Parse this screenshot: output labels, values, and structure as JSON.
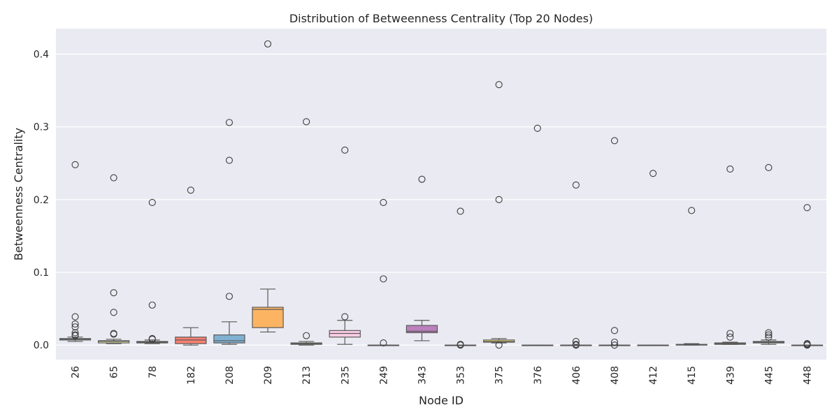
{
  "chart_data": {
    "type": "box",
    "title": "Distribution of Betweenness Centrality (Top 20 Nodes)",
    "xlabel": "Node ID",
    "ylabel": "Betweenness Centrality",
    "ylim": [
      -0.02,
      0.435
    ],
    "yticks": [
      0.0,
      0.1,
      0.2,
      0.3,
      0.4
    ],
    "ytick_labels": [
      "0.0",
      "0.1",
      "0.2",
      "0.3",
      "0.4"
    ],
    "grid": true,
    "background": "#eaeaf2",
    "categories": [
      "26",
      "65",
      "78",
      "182",
      "208",
      "209",
      "213",
      "235",
      "249",
      "343",
      "353",
      "375",
      "376",
      "406",
      "408",
      "412",
      "415",
      "439",
      "445",
      "448"
    ],
    "boxes": [
      {
        "node": "26",
        "color": "#8dd3c7",
        "whisker_low": 0.005,
        "q1": 0.007,
        "median": 0.008,
        "q3": 0.009,
        "whisker_high": 0.011,
        "outliers": [
          0.248,
          0.039,
          0.029,
          0.025,
          0.017,
          0.014,
          0.013
        ]
      },
      {
        "node": "65",
        "color": "#ffffb3",
        "whisker_low": 0.002,
        "q1": 0.003,
        "median": 0.005,
        "q3": 0.006,
        "whisker_high": 0.008,
        "outliers": [
          0.23,
          0.072,
          0.045,
          0.016,
          0.015
        ]
      },
      {
        "node": "78",
        "color": "#bebada",
        "whisker_low": 0.002,
        "q1": 0.003,
        "median": 0.004,
        "q3": 0.005,
        "whisker_high": 0.007,
        "outliers": [
          0.196,
          0.055,
          0.009,
          0.008
        ]
      },
      {
        "node": "182",
        "color": "#fb8072",
        "whisker_low": 0.0,
        "q1": 0.002,
        "median": 0.007,
        "q3": 0.011,
        "whisker_high": 0.024,
        "outliers": [
          0.213
        ]
      },
      {
        "node": "208",
        "color": "#80b1d3",
        "whisker_low": 0.001,
        "q1": 0.003,
        "median": 0.006,
        "q3": 0.014,
        "whisker_high": 0.032,
        "outliers": [
          0.306,
          0.254,
          0.067
        ]
      },
      {
        "node": "209",
        "color": "#fdb462",
        "whisker_low": 0.018,
        "q1": 0.024,
        "median": 0.049,
        "q3": 0.052,
        "whisker_high": 0.077,
        "outliers": [
          0.414
        ]
      },
      {
        "node": "213",
        "color": "#b3de69",
        "whisker_low": 0.0,
        "q1": 0.001,
        "median": 0.002,
        "q3": 0.003,
        "whisker_high": 0.005,
        "outliers": [
          0.307,
          0.013
        ]
      },
      {
        "node": "235",
        "color": "#fccde5",
        "whisker_low": 0.001,
        "q1": 0.011,
        "median": 0.016,
        "q3": 0.02,
        "whisker_high": 0.034,
        "outliers": [
          0.268,
          0.039
        ]
      },
      {
        "node": "249",
        "color": "#d9d9d9",
        "whisker_low": 0.0,
        "q1": 0.0,
        "median": 0.0,
        "q3": 0.0,
        "whisker_high": 0.0,
        "outliers": [
          0.196,
          0.091,
          0.003
        ]
      },
      {
        "node": "343",
        "color": "#bc80bd",
        "whisker_low": 0.006,
        "q1": 0.017,
        "median": 0.019,
        "q3": 0.027,
        "whisker_high": 0.034,
        "outliers": [
          0.228
        ]
      },
      {
        "node": "353",
        "color": "#ccebc5",
        "whisker_low": 0.0,
        "q1": 0.0,
        "median": 0.0,
        "q3": 0.0,
        "whisker_high": 0.0,
        "outliers": [
          0.184,
          0.001,
          0.0
        ]
      },
      {
        "node": "375",
        "color": "#ffed6f",
        "whisker_low": 0.003,
        "q1": 0.004,
        "median": 0.005,
        "q3": 0.007,
        "whisker_high": 0.009,
        "outliers": [
          0.358,
          0.2,
          0.0
        ]
      },
      {
        "node": "376",
        "color": "#8dd3c7",
        "whisker_low": 0.0,
        "q1": 0.0,
        "median": 0.0,
        "q3": 0.0,
        "whisker_high": 0.0,
        "outliers": [
          0.298
        ]
      },
      {
        "node": "406",
        "color": "#ffffb3",
        "whisker_low": 0.0,
        "q1": 0.0,
        "median": 0.0,
        "q3": 0.0,
        "whisker_high": 0.0,
        "outliers": [
          0.22,
          0.005,
          0.001,
          0.0
        ]
      },
      {
        "node": "408",
        "color": "#bebada",
        "whisker_low": 0.0,
        "q1": 0.0,
        "median": 0.0,
        "q3": 0.0,
        "whisker_high": 0.0,
        "outliers": [
          0.281,
          0.02,
          0.004,
          0.0
        ]
      },
      {
        "node": "412",
        "color": "#fb8072",
        "whisker_low": 0.0,
        "q1": 0.0,
        "median": 0.0,
        "q3": 0.0,
        "whisker_high": 0.0,
        "outliers": [
          0.236
        ]
      },
      {
        "node": "415",
        "color": "#80b1d3",
        "whisker_low": 0.0,
        "q1": 0.0,
        "median": 0.001,
        "q3": 0.001,
        "whisker_high": 0.002,
        "outliers": [
          0.185
        ]
      },
      {
        "node": "439",
        "color": "#fdb462",
        "whisker_low": 0.001,
        "q1": 0.001,
        "median": 0.002,
        "q3": 0.003,
        "whisker_high": 0.004,
        "outliers": [
          0.242,
          0.016,
          0.011
        ]
      },
      {
        "node": "445",
        "color": "#b3de69",
        "whisker_low": 0.001,
        "q1": 0.003,
        "median": 0.004,
        "q3": 0.005,
        "whisker_high": 0.007,
        "outliers": [
          0.244,
          0.017,
          0.014,
          0.011
        ]
      },
      {
        "node": "448",
        "color": "#fccde5",
        "whisker_low": 0.0,
        "q1": 0.0,
        "median": 0.0,
        "q3": 0.0,
        "whisker_high": 0.0,
        "outliers": [
          0.189,
          0.002,
          0.001,
          0.0
        ]
      }
    ]
  }
}
